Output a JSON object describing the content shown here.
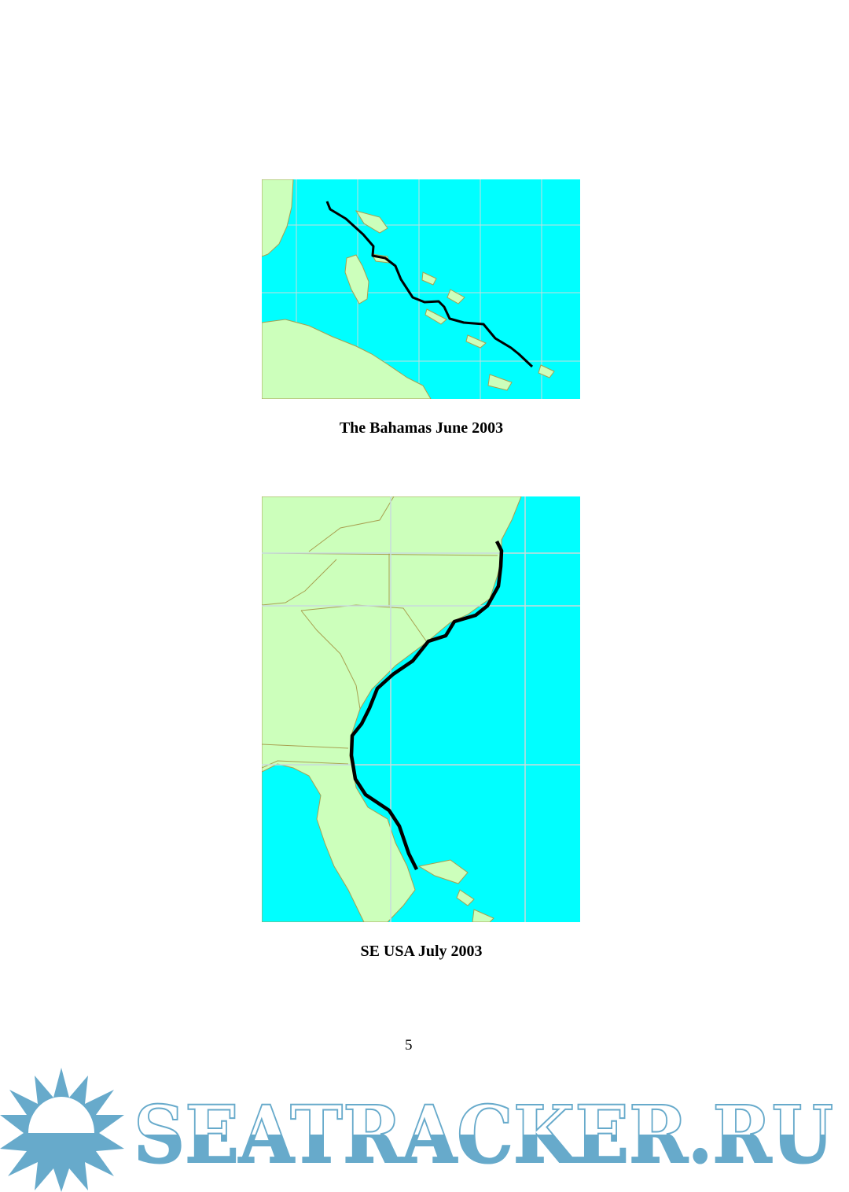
{
  "figures": [
    {
      "caption": "The Bahamas June 2003"
    },
    {
      "caption": "SE USA July 2003"
    }
  ],
  "colors": {
    "sea": "#00FFFF",
    "land": "#CCFFBB",
    "coast": "#A8A050",
    "track": "#000000",
    "grid": "#C8DCDC",
    "watermark": "#67AACB"
  },
  "page_number": "5",
  "watermark": {
    "text": "SEATRACKER.RU"
  }
}
